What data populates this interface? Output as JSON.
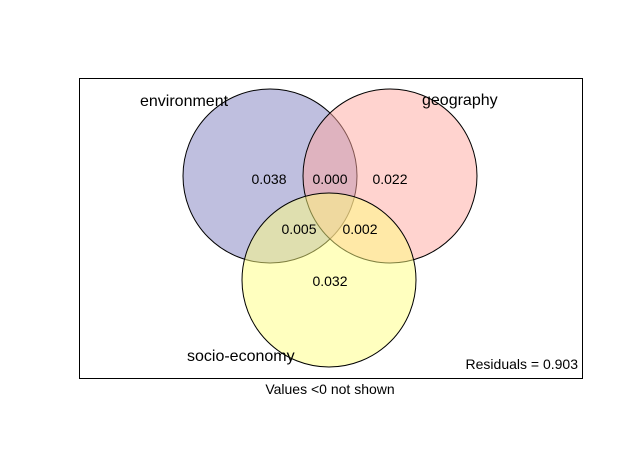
{
  "diagram": {
    "type": "venn",
    "sets": [
      {
        "name": "environment",
        "color": "#7f7fbf"
      },
      {
        "name": "geography",
        "color": "#ffa8a0"
      },
      {
        "name": "socio-economy",
        "color": "#ffff80"
      }
    ],
    "regions": {
      "environment_only": "0.038",
      "environment_geography": "0.000",
      "geography_only": "0.022",
      "environment_socio": "0.005",
      "geography_socio": "0.002",
      "socio_only": "0.032"
    },
    "residuals_label": "Residuals = 0.903",
    "footnote": "Values <0 not shown"
  }
}
